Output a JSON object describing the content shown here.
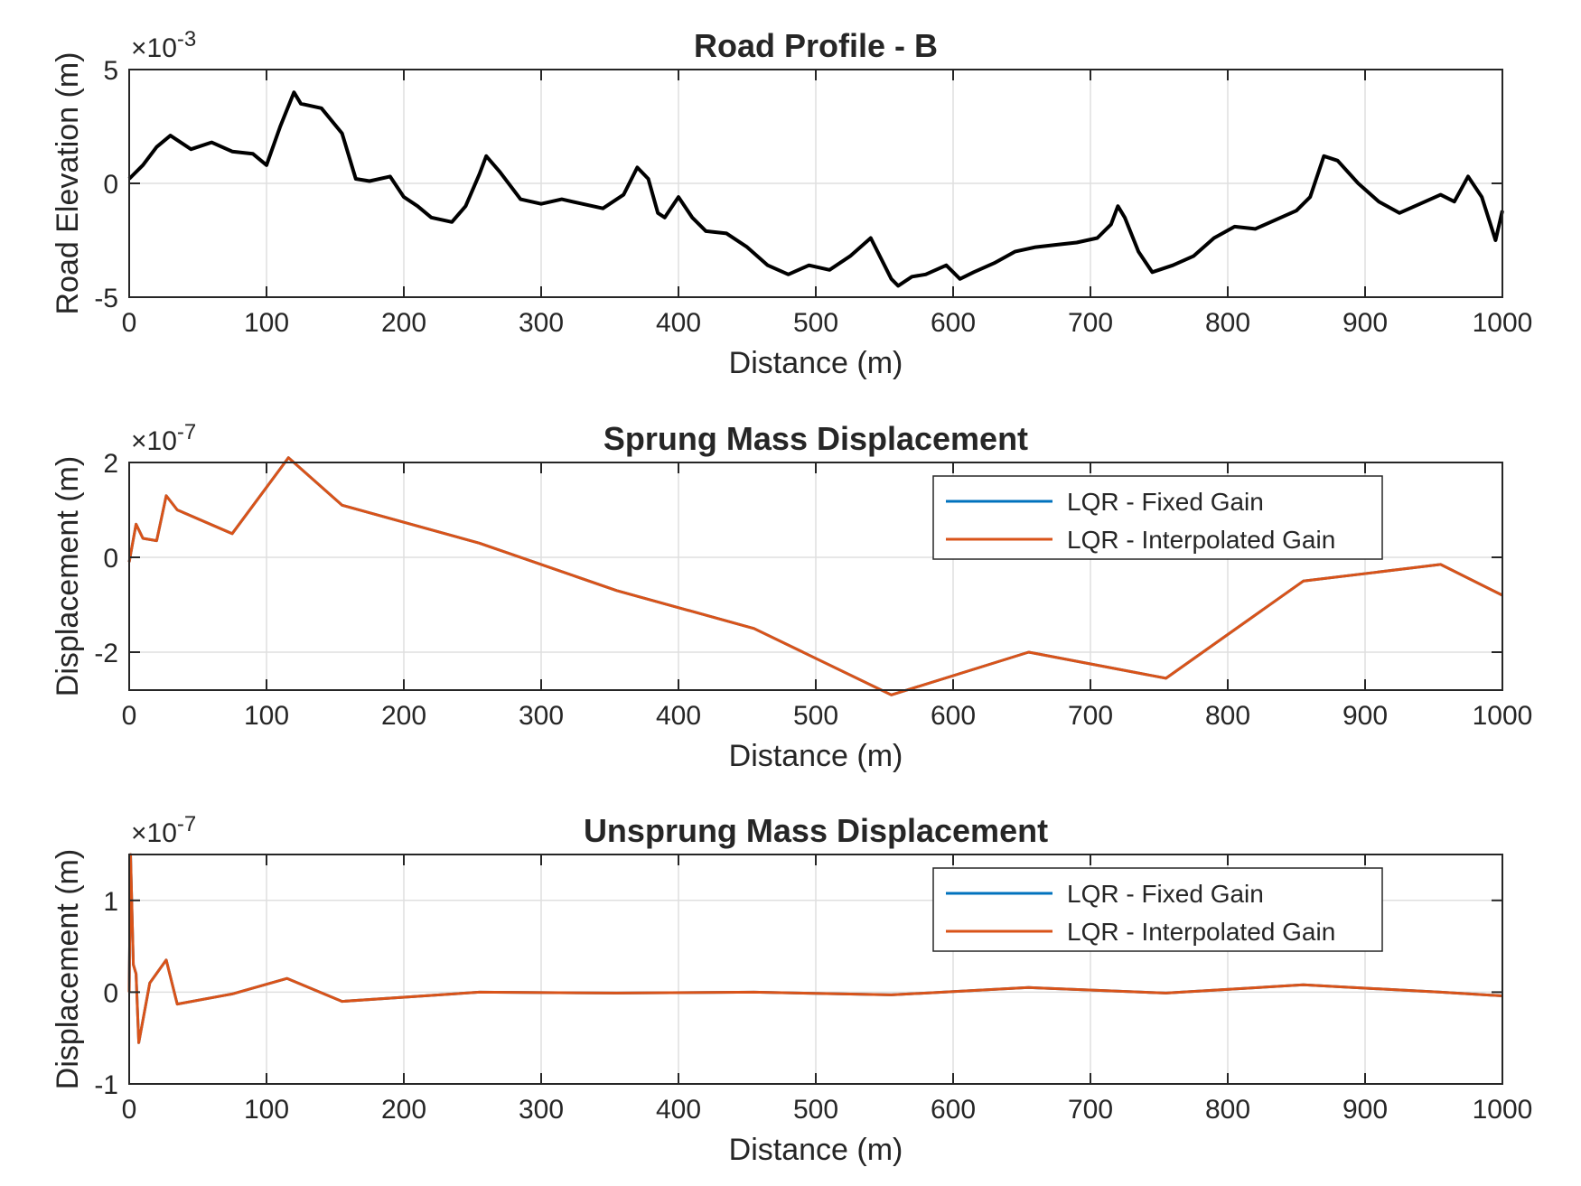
{
  "chart_data": [
    {
      "type": "line",
      "title": "Road Profile - B",
      "xlabel": "Distance (m)",
      "ylabel": "Road Elevation (m)",
      "exponent_label": "×10",
      "exponent_power": "-3",
      "xlim": [
        0,
        1000
      ],
      "ylim": [
        -5,
        5
      ],
      "xticks": [
        "0",
        "100",
        "200",
        "300",
        "400",
        "500",
        "600",
        "700",
        "800",
        "900",
        "1000"
      ],
      "yticks": [
        "-5",
        "0",
        "5"
      ],
      "ytick_values": [
        -5,
        0,
        5
      ],
      "grid": true,
      "series": [
        {
          "color": "#000000",
          "x": [
            0,
            10,
            20,
            30,
            45,
            60,
            75,
            90,
            100,
            110,
            120,
            125,
            140,
            155,
            165,
            175,
            190,
            200,
            210,
            220,
            235,
            245,
            255,
            260,
            270,
            285,
            300,
            315,
            330,
            345,
            360,
            370,
            378,
            385,
            390,
            400,
            410,
            420,
            435,
            450,
            465,
            480,
            495,
            510,
            525,
            540,
            555,
            560,
            570,
            580,
            595,
            605,
            615,
            630,
            645,
            660,
            675,
            690,
            705,
            715,
            720,
            725,
            735,
            745,
            760,
            775,
            790,
            805,
            820,
            835,
            850,
            860,
            870,
            880,
            895,
            910,
            925,
            940,
            955,
            965,
            975,
            985,
            995,
            1000
          ],
          "y": [
            0.2,
            0.8,
            1.6,
            2.1,
            1.5,
            1.8,
            1.4,
            1.3,
            0.8,
            2.5,
            4.0,
            3.5,
            3.3,
            2.2,
            0.2,
            0.1,
            0.3,
            -0.6,
            -1.0,
            -1.5,
            -1.7,
            -1.0,
            0.4,
            1.2,
            0.5,
            -0.7,
            -0.9,
            -0.7,
            -0.9,
            -1.1,
            -0.5,
            0.7,
            0.2,
            -1.3,
            -1.5,
            -0.6,
            -1.5,
            -2.1,
            -2.2,
            -2.8,
            -3.6,
            -4.0,
            -3.6,
            -3.8,
            -3.2,
            -2.4,
            -4.2,
            -4.5,
            -4.1,
            -4.0,
            -3.6,
            -4.2,
            -3.9,
            -3.5,
            -3.0,
            -2.8,
            -2.7,
            -2.6,
            -2.4,
            -1.8,
            -1.0,
            -1.5,
            -3.0,
            -3.9,
            -3.6,
            -3.2,
            -2.4,
            -1.9,
            -2.0,
            -1.6,
            -1.2,
            -0.6,
            1.2,
            1.0,
            0.0,
            -0.8,
            -1.3,
            -0.9,
            -0.5,
            -0.8,
            0.3,
            -0.6,
            -2.5,
            -1.2
          ]
        }
      ]
    },
    {
      "type": "line",
      "title": "Sprung Mass Displacement",
      "xlabel": "Distance (m)",
      "ylabel": "Displacement (m)",
      "exponent_label": "×10",
      "exponent_power": "-7",
      "xlim": [
        0,
        1000
      ],
      "ylim": [
        -2.8,
        2.0
      ],
      "xticks": [
        "0",
        "100",
        "200",
        "300",
        "400",
        "500",
        "600",
        "700",
        "800",
        "900",
        "1000"
      ],
      "yticks": [
        "-2",
        "0",
        "2"
      ],
      "ytick_values": [
        -2,
        0,
        2
      ],
      "grid": true,
      "legend": "top-right",
      "series": [
        {
          "name": "LQR - Fixed Gain",
          "color": "#0072BD",
          "x": [
            0,
            5,
            10,
            20,
            27,
            35,
            75,
            116,
            155,
            255,
            355,
            455,
            555,
            655,
            755,
            855,
            955,
            1000
          ],
          "y": [
            -0.1,
            0.7,
            0.4,
            0.35,
            1.3,
            1.0,
            0.5,
            2.1,
            1.1,
            0.3,
            -0.7,
            -1.5,
            -2.9,
            -2.0,
            -2.55,
            -0.5,
            -0.15,
            -0.8
          ]
        },
        {
          "name": "LQR - Interpolated Gain",
          "color": "#D95319",
          "x": [
            0,
            5,
            10,
            20,
            27,
            35,
            75,
            116,
            155,
            255,
            355,
            455,
            555,
            655,
            755,
            855,
            955,
            1000
          ],
          "y": [
            -0.1,
            0.7,
            0.4,
            0.35,
            1.3,
            1.0,
            0.5,
            2.1,
            1.1,
            0.3,
            -0.7,
            -1.5,
            -2.9,
            -2.0,
            -2.55,
            -0.5,
            -0.15,
            -0.8
          ]
        }
      ]
    },
    {
      "type": "line",
      "title": "Unsprung Mass Displacement",
      "xlabel": "Distance (m)",
      "ylabel": "Displacement (m)",
      "exponent_label": "×10",
      "exponent_power": "-7",
      "xlim": [
        0,
        1000
      ],
      "ylim": [
        -1,
        1.5
      ],
      "xticks": [
        "0",
        "100",
        "200",
        "300",
        "400",
        "500",
        "600",
        "700",
        "800",
        "900",
        "1000"
      ],
      "yticks": [
        "-1",
        "0",
        "1"
      ],
      "ytick_values": [
        -1,
        0,
        1
      ],
      "grid": true,
      "legend": "top-right",
      "series": [
        {
          "name": "LQR - Fixed Gain",
          "color": "#0072BD",
          "x": [
            0,
            1,
            3,
            5,
            7,
            15,
            27,
            35,
            75,
            115,
            155,
            255,
            355,
            455,
            555,
            655,
            755,
            855,
            955,
            1000
          ],
          "y": [
            0,
            1.5,
            0.3,
            0.2,
            -0.55,
            0.1,
            0.35,
            -0.13,
            -0.02,
            0.15,
            -0.1,
            0.0,
            -0.01,
            0.0,
            -0.03,
            0.05,
            -0.01,
            0.08,
            0.0,
            -0.04
          ]
        },
        {
          "name": "LQR - Interpolated Gain",
          "color": "#D95319",
          "x": [
            0,
            1,
            3,
            5,
            7,
            15,
            27,
            35,
            75,
            115,
            155,
            255,
            355,
            455,
            555,
            655,
            755,
            855,
            955,
            1000
          ],
          "y": [
            0,
            1.5,
            0.3,
            0.2,
            -0.55,
            0.1,
            0.35,
            -0.13,
            -0.02,
            0.15,
            -0.1,
            0.0,
            -0.01,
            0.0,
            -0.03,
            0.05,
            -0.01,
            0.08,
            0.0,
            -0.04
          ]
        }
      ]
    }
  ]
}
